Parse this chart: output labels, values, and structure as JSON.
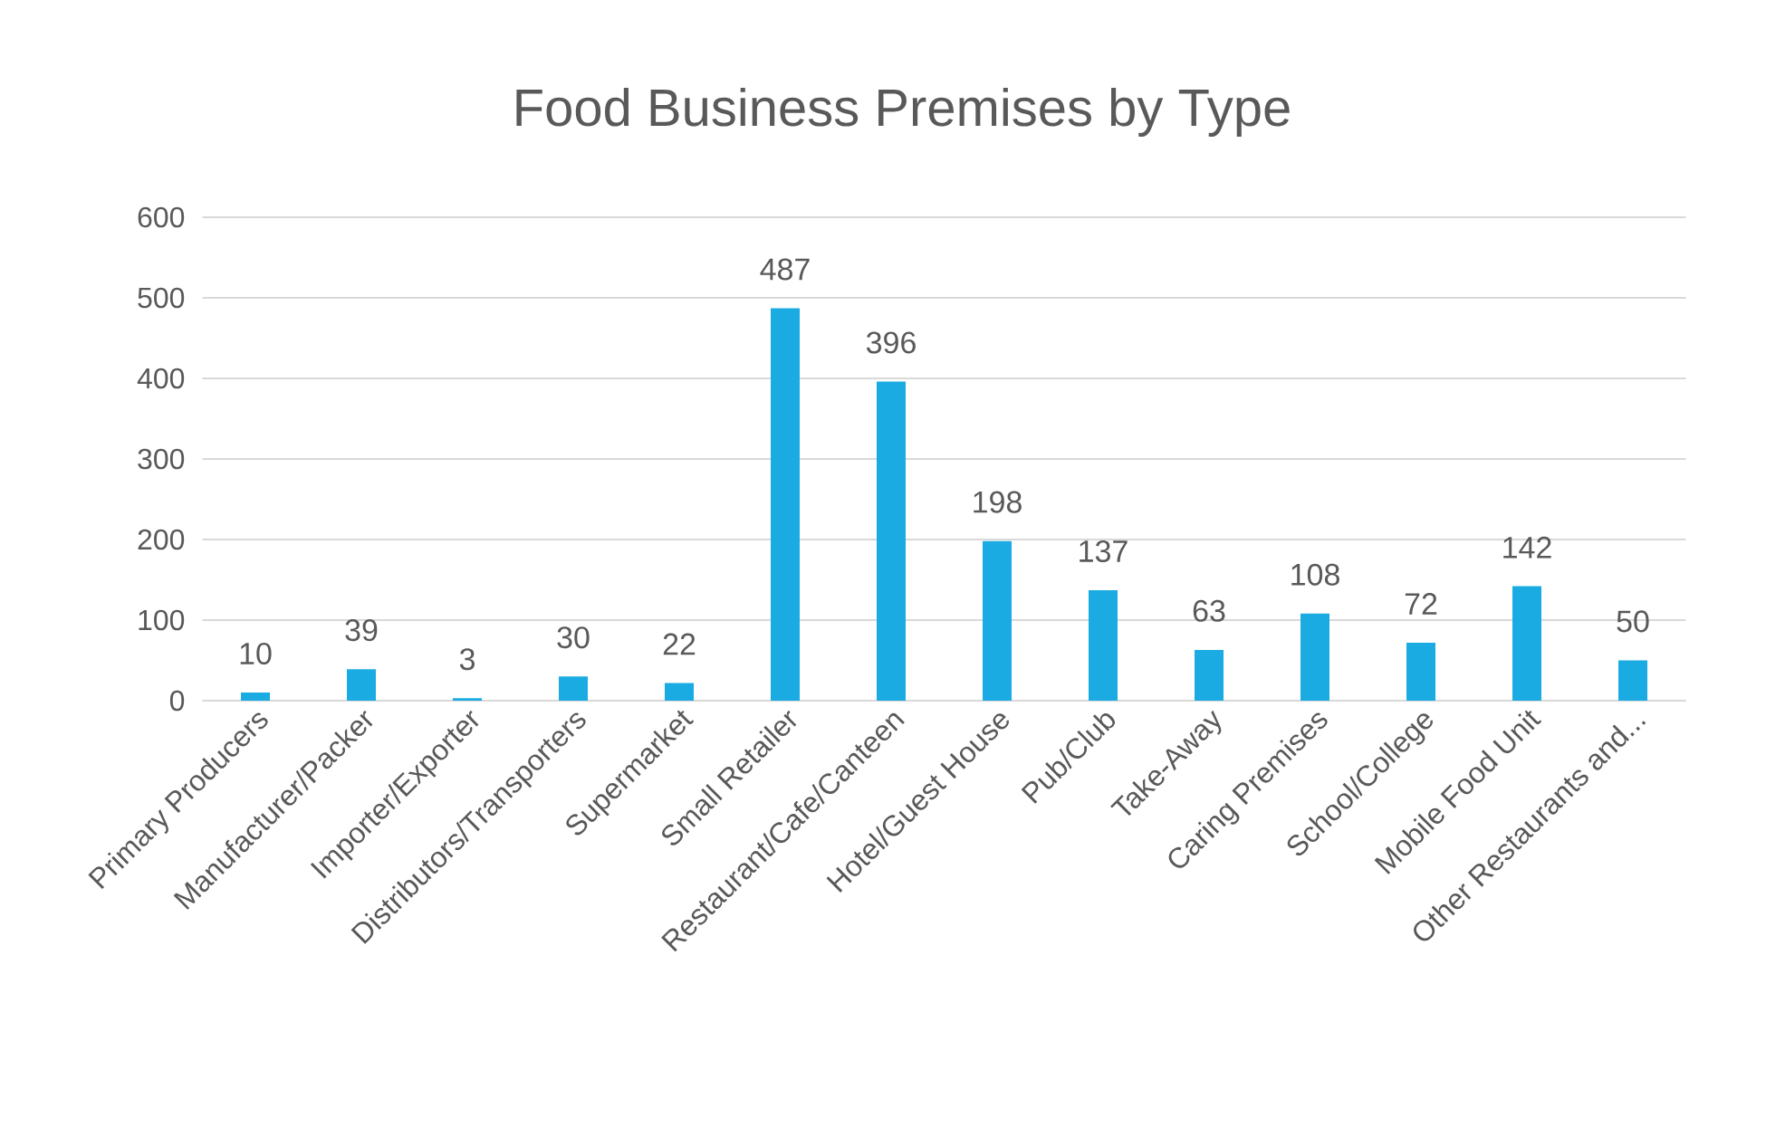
{
  "chart_data": {
    "type": "bar",
    "title": "Food Business Premises by Type",
    "categories": [
      "Primary Producers",
      "Manufacturer/Packer",
      "Importer/Exporter",
      "Distributors/Transporters",
      "Supermarket",
      "Small Retailer",
      "Restaurant/Cafe/Canteen",
      "Hotel/Guest House",
      "Pub/Club",
      "Take-Away",
      "Caring Premises",
      "School/College",
      "Mobile Food Unit",
      "Other Restaurants and..."
    ],
    "values": [
      10,
      39,
      3,
      30,
      22,
      487,
      396,
      198,
      137,
      63,
      108,
      72,
      142,
      50
    ],
    "color": "#1aabe2",
    "ylim": [
      0,
      600
    ],
    "yticks": [
      0,
      100,
      200,
      300,
      400,
      500,
      600
    ],
    "grid": "y",
    "data_labels": true
  }
}
